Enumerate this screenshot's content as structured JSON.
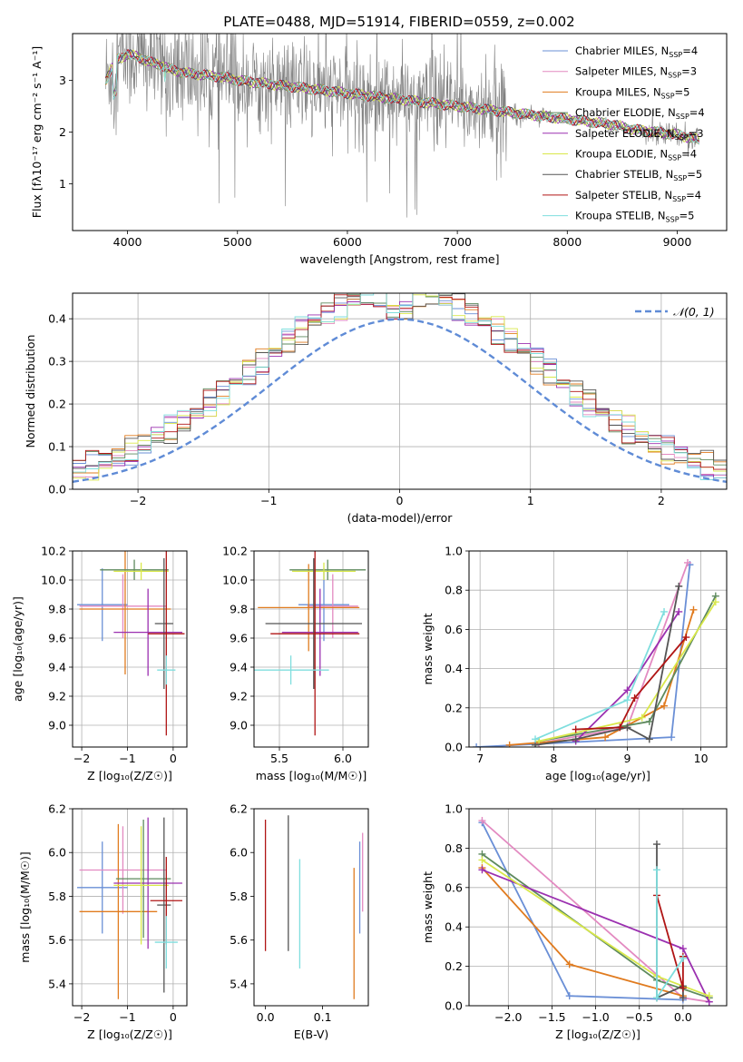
{
  "title": "PLATE=0488, MJD=51914, FIBERID=0559, z=0.002",
  "colors": {
    "Chabrier MILES": "#6a8fd6",
    "Salpeter MILES": "#e38ac1",
    "Kroupa MILES": "#e07b1f",
    "Chabrier ELODIE": "#5e8a5e",
    "Salpeter ELODIE": "#9b30b0",
    "Kroupa ELODIE": "#d9e84a",
    "Chabrier STELIB": "#555555",
    "Salpeter STELIB": "#b01515",
    "Kroupa STELIB": "#7fdede",
    "data": "#808080"
  },
  "chart_data": [
    {
      "id": "spectrum",
      "type": "line",
      "xlabel": "wavelength [Angstrom, rest frame]",
      "ylabel": "Flux [fλ10⁻¹⁷ erg cm⁻² s⁻¹ A⁻¹]",
      "xlim": [
        3500,
        9450
      ],
      "ylim": [
        0.1,
        3.9
      ],
      "xticks": [
        4000,
        5000,
        6000,
        7000,
        8000,
        9000
      ],
      "yticks": [
        1,
        2,
        3
      ],
      "grid": false,
      "legend_position": "top-right",
      "legend": [
        {
          "label": "Chabrier MILES, N",
          "sub": "SSP",
          "tail": "=4"
        },
        {
          "label": "Salpeter MILES, N",
          "sub": "SSP",
          "tail": "=3"
        },
        {
          "label": "Kroupa MILES, N",
          "sub": "SSP",
          "tail": "=5"
        },
        {
          "label": "Chabrier ELODIE, N",
          "sub": "SSP",
          "tail": "=4"
        },
        {
          "label": "Salpeter ELODIE, N",
          "sub": "SSP",
          "tail": "=3"
        },
        {
          "label": "Kroupa ELODIE, N",
          "sub": "SSP",
          "tail": "=4"
        },
        {
          "label": "Chabrier STELIB, N",
          "sub": "SSP",
          "tail": "=5"
        },
        {
          "label": "Salpeter STELIB, N",
          "sub": "SSP",
          "tail": "=4"
        },
        {
          "label": "Kroupa STELIB, N",
          "sub": "SSP",
          "tail": "=5"
        }
      ],
      "continuum_x": [
        3800,
        3900,
        4000,
        4100,
        4200,
        4300,
        4400,
        4500,
        4700,
        4900,
        5000,
        5200,
        5400,
        5600,
        5800,
        6000,
        6200,
        6400,
        6600,
        6800,
        7000,
        7200,
        7400,
        7600,
        7800,
        8000,
        8200,
        8400,
        8600,
        8800,
        9000,
        9200
      ],
      "continuum_y": [
        3.0,
        3.4,
        3.5,
        3.45,
        3.35,
        3.3,
        3.2,
        3.15,
        3.1,
        3.05,
        3.0,
        2.95,
        2.9,
        2.85,
        2.8,
        2.75,
        2.7,
        2.65,
        2.6,
        2.55,
        2.5,
        2.45,
        2.4,
        2.35,
        2.3,
        2.25,
        2.2,
        2.15,
        2.05,
        2.0,
        1.95,
        1.85
      ]
    },
    {
      "id": "residuals",
      "type": "histogram",
      "xlabel": "(data-model)/error",
      "ylabel": "Normed distribution",
      "xlim": [
        -2.5,
        2.5
      ],
      "ylim": [
        0,
        0.46
      ],
      "xticks": [
        -2,
        -1,
        0,
        1,
        2
      ],
      "yticks": [
        0.0,
        0.1,
        0.2,
        0.3,
        0.4
      ],
      "grid": true,
      "legend_position": "top-right",
      "reference_curve": "𝒩(0, 1)",
      "bin_width": 0.1
    },
    {
      "id": "age-vs-z",
      "type": "errorbar",
      "xlabel": "Z [log₁₀(Z/Z☉)]",
      "ylabel": "age  [log₁₀(age/yr)]",
      "xlim": [
        -2.2,
        0.3
      ],
      "ylim": [
        8.85,
        10.2
      ],
      "xticks": [
        -2,
        -1,
        0
      ],
      "yticks": [
        9.0,
        9.2,
        9.4,
        9.6,
        9.8,
        10.0,
        10.2
      ],
      "grid": true,
      "points": [
        {
          "model": "Chabrier MILES",
          "x": -1.55,
          "xerr": 0.55,
          "y": 9.83,
          "yerr": 0.25
        },
        {
          "model": "Salpeter MILES",
          "x": -1.1,
          "xerr": 0.95,
          "y": 9.82,
          "yerr": 0.22
        },
        {
          "model": "Kroupa MILES",
          "x": -1.05,
          "xerr": 1.0,
          "y": 9.8,
          "yerr": 0.45
        },
        {
          "model": "Chabrier ELODIE",
          "x": -0.85,
          "xerr": 0.75,
          "y": 10.07,
          "yerr": 0.07
        },
        {
          "model": "Salpeter ELODIE",
          "x": -0.55,
          "xerr": 0.75,
          "y": 9.64,
          "yerr": 0.3
        },
        {
          "model": "Kroupa ELODIE",
          "x": -0.7,
          "xerr": 0.6,
          "y": 10.06,
          "yerr": 0.06
        },
        {
          "model": "Chabrier STELIB",
          "x": -0.2,
          "xerr": 0.2,
          "y": 9.7,
          "yerr": 0.45
        },
        {
          "model": "Salpeter STELIB",
          "x": -0.15,
          "xerr": 0.4,
          "y": 9.63,
          "yerr": 0.7
        },
        {
          "model": "Kroupa STELIB",
          "x": -0.15,
          "xerr": 0.2,
          "y": 9.38,
          "yerr": 0.1
        }
      ]
    },
    {
      "id": "age-vs-mass",
      "type": "errorbar",
      "xlabel": "mass [log₁₀(M/M☉)]",
      "ylabel": "",
      "xlim": [
        5.3,
        6.2
      ],
      "ylim": [
        8.85,
        10.2
      ],
      "xticks": [
        5.5,
        6.0
      ],
      "yticks": [
        9.0,
        9.2,
        9.4,
        9.6,
        9.8,
        10.0,
        10.2
      ],
      "grid": true,
      "points": [
        {
          "model": "Chabrier MILES",
          "x": 5.85,
          "xerr": 0.2,
          "y": 9.83,
          "yerr": 0.25
        },
        {
          "model": "Salpeter MILES",
          "x": 5.92,
          "xerr": 0.2,
          "y": 9.82,
          "yerr": 0.22
        },
        {
          "model": "Kroupa MILES",
          "x": 5.73,
          "xerr": 0.4,
          "y": 9.81,
          "yerr": 0.3
        },
        {
          "model": "Chabrier ELODIE",
          "x": 5.88,
          "xerr": 0.3,
          "y": 10.07,
          "yerr": 0.07
        },
        {
          "model": "Salpeter ELODIE",
          "x": 5.82,
          "xerr": 0.3,
          "y": 9.64,
          "yerr": 0.3
        },
        {
          "model": "Kroupa ELODIE",
          "x": 5.85,
          "xerr": 0.25,
          "y": 10.06,
          "yerr": 0.06
        },
        {
          "model": "Chabrier STELIB",
          "x": 5.77,
          "xerr": 0.38,
          "y": 9.7,
          "yerr": 0.45
        },
        {
          "model": "Salpeter STELIB",
          "x": 5.78,
          "xerr": 0.35,
          "y": 9.63,
          "yerr": 0.7
        },
        {
          "model": "Kroupa STELIB",
          "x": 5.59,
          "xerr": 0.3,
          "y": 9.38,
          "yerr": 0.1
        }
      ]
    },
    {
      "id": "weight-vs-age",
      "type": "line",
      "xlabel": "age  [log₁₀(age/yr)]",
      "ylabel": "mass weight",
      "xlim": [
        6.85,
        10.35
      ],
      "ylim": [
        0.0,
        1.0
      ],
      "xticks": [
        7,
        8,
        9,
        10
      ],
      "yticks": [
        0.0,
        0.2,
        0.4,
        0.6,
        0.8,
        1.0
      ],
      "grid": true,
      "series": [
        {
          "model": "Chabrier MILES",
          "x": [
            6.95,
            9.6,
            9.85
          ],
          "y": [
            0.0,
            0.05,
            0.93
          ]
        },
        {
          "model": "Salpeter MILES",
          "x": [
            7.8,
            9.0,
            9.82
          ],
          "y": [
            0.02,
            0.1,
            0.94
          ]
        },
        {
          "model": "Kroupa MILES",
          "x": [
            7.4,
            8.7,
            9.5,
            9.9
          ],
          "y": [
            0.01,
            0.05,
            0.21,
            0.7
          ]
        },
        {
          "model": "Chabrier ELODIE",
          "x": [
            7.8,
            9.3,
            10.2
          ],
          "y": [
            0.03,
            0.13,
            0.77
          ]
        },
        {
          "model": "Salpeter ELODIE",
          "x": [
            8.3,
            9.0,
            9.7
          ],
          "y": [
            0.03,
            0.29,
            0.69
          ]
        },
        {
          "model": "Kroupa ELODIE",
          "x": [
            7.8,
            9.2,
            10.2
          ],
          "y": [
            0.03,
            0.15,
            0.74
          ]
        },
        {
          "model": "Chabrier STELIB",
          "x": [
            7.75,
            8.3,
            9.0,
            9.3,
            9.7
          ],
          "y": [
            0.01,
            0.04,
            0.1,
            0.04,
            0.82
          ]
        },
        {
          "model": "Salpeter STELIB",
          "x": [
            8.3,
            8.9,
            9.1,
            9.8
          ],
          "y": [
            0.09,
            0.1,
            0.25,
            0.56
          ]
        },
        {
          "model": "Kroupa STELIB",
          "x": [
            7.75,
            9.0,
            9.5
          ],
          "y": [
            0.04,
            0.24,
            0.69
          ]
        }
      ]
    },
    {
      "id": "mass-vs-z",
      "type": "errorbar",
      "xlabel": "Z [log₁₀(Z/Z☉)]",
      "ylabel": "mass [log₁₀(M/M☉)]",
      "xlim": [
        -2.2,
        0.3
      ],
      "ylim": [
        5.3,
        6.2
      ],
      "xticks": [
        -2,
        -1,
        0
      ],
      "yticks": [
        5.4,
        5.6,
        5.8,
        6.0,
        6.2
      ],
      "grid": true,
      "points": [
        {
          "model": "Chabrier MILES",
          "x": -1.55,
          "xerr": 0.55,
          "y": 5.84,
          "yerr": 0.21
        },
        {
          "model": "Salpeter MILES",
          "x": -1.1,
          "xerr": 0.95,
          "y": 5.92,
          "yerr": 0.2
        },
        {
          "model": "Kroupa MILES",
          "x": -1.2,
          "xerr": 0.85,
          "y": 5.73,
          "yerr": 0.4
        },
        {
          "model": "Chabrier ELODIE",
          "x": -0.65,
          "xerr": 0.6,
          "y": 5.88,
          "yerr": 0.27
        },
        {
          "model": "Salpeter ELODIE",
          "x": -0.55,
          "xerr": 0.75,
          "y": 5.86,
          "yerr": 0.3
        },
        {
          "model": "Kroupa ELODIE",
          "x": -0.7,
          "xerr": 0.6,
          "y": 5.85,
          "yerr": 0.27
        },
        {
          "model": "Chabrier STELIB",
          "x": -0.2,
          "xerr": 0.15,
          "y": 5.76,
          "yerr": 0.4
        },
        {
          "model": "Salpeter STELIB",
          "x": -0.15,
          "xerr": 0.35,
          "y": 5.78,
          "yerr": 0.2
        },
        {
          "model": "Kroupa STELIB",
          "x": -0.15,
          "xerr": 0.25,
          "y": 5.59,
          "yerr": 0.12
        }
      ]
    },
    {
      "id": "mass-vs-ebv",
      "type": "errorbar",
      "xlabel": "E(B-V)",
      "ylabel": "",
      "xlim": [
        -0.02,
        0.18
      ],
      "ylim": [
        5.3,
        6.2
      ],
      "xticks": [
        0.0,
        0.1
      ],
      "yticks": [
        5.4,
        5.6,
        5.8,
        6.0,
        6.2
      ],
      "grid": false,
      "points": [
        {
          "model": "Salpeter STELIB",
          "x": 0.0,
          "y": 5.85,
          "yerr": 0.3
        },
        {
          "model": "Chabrier STELIB",
          "x": 0.04,
          "y": 5.86,
          "yerr": 0.31
        },
        {
          "model": "Kroupa STELIB",
          "x": 0.06,
          "y": 5.72,
          "yerr": 0.25
        },
        {
          "model": "Kroupa MILES",
          "x": 0.155,
          "y": 5.63,
          "yerr": 0.3
        },
        {
          "model": "Chabrier MILES",
          "x": 0.165,
          "y": 5.84,
          "yerr": 0.21
        },
        {
          "model": "Salpeter MILES",
          "x": 0.17,
          "y": 5.91,
          "yerr": 0.18
        }
      ]
    },
    {
      "id": "weight-vs-z",
      "type": "line",
      "xlabel": "Z [log₁₀(Z/Z☉)]",
      "ylabel": "mass weight",
      "xlim": [
        -2.45,
        0.5
      ],
      "ylim": [
        0.0,
        1.0
      ],
      "xticks": [
        -2.0,
        -1.5,
        -1.0,
        -0.5,
        0.0
      ],
      "yticks": [
        0.0,
        0.2,
        0.4,
        0.6,
        0.8,
        1.0
      ],
      "grid": true,
      "series": [
        {
          "model": "Chabrier MILES",
          "x": [
            -2.3,
            -1.3,
            0.0
          ],
          "y": [
            0.93,
            0.05,
            0.03
          ]
        },
        {
          "model": "Salpeter MILES",
          "x": [
            -2.3,
            0.0,
            0.3
          ],
          "y": [
            0.94,
            0.04,
            0.02
          ]
        },
        {
          "model": "Kroupa MILES",
          "x": [
            -2.3,
            -1.3,
            0.0
          ],
          "y": [
            0.7,
            0.21,
            0.05
          ]
        },
        {
          "model": "Chabrier ELODIE",
          "x": [
            -2.3,
            -0.3,
            0.3
          ],
          "y": [
            0.77,
            0.13,
            0.04
          ]
        },
        {
          "model": "Salpeter ELODIE",
          "x": [
            -2.3,
            0.0,
            0.3
          ],
          "y": [
            0.69,
            0.29,
            0.02
          ]
        },
        {
          "model": "Kroupa ELODIE",
          "x": [
            -2.3,
            -0.3,
            0.3
          ],
          "y": [
            0.74,
            0.15,
            0.05
          ]
        },
        {
          "model": "Chabrier STELIB",
          "x": [
            -0.3,
            -0.3,
            0.0,
            0.0
          ],
          "y": [
            0.82,
            0.04,
            0.1,
            0.04
          ]
        },
        {
          "model": "Salpeter STELIB",
          "x": [
            -0.3,
            0.0,
            0.0
          ],
          "y": [
            0.56,
            0.09,
            0.25
          ]
        },
        {
          "model": "Kroupa STELIB",
          "x": [
            -0.3,
            -0.3,
            0.0
          ],
          "y": [
            0.69,
            0.04,
            0.24
          ]
        }
      ]
    }
  ]
}
